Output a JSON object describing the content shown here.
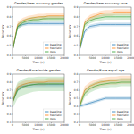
{
  "chart_data": [
    {
      "type": "line",
      "title": "Gender/Item accuracy gender",
      "x_label": "Time (s)",
      "y_label": "Accuracy",
      "x": [
        0,
        2000,
        4000,
        6000,
        8000,
        10000,
        12000,
        14000,
        16000,
        18000,
        20000
      ],
      "xlim": [
        0,
        20000
      ],
      "xticks": [
        0,
        5000,
        10000,
        15000,
        20000
      ],
      "ylim": [
        0.4,
        0.9
      ],
      "yticks": [
        0.4,
        0.5,
        0.6,
        0.7,
        0.8,
        0.9
      ],
      "legend": "lower right",
      "grid": false,
      "series": [
        {
          "name": "baseline",
          "color": "#1f77b4",
          "values": [
            0.45,
            0.7,
            0.72,
            0.73,
            0.73,
            0.73,
            0.73,
            0.73,
            0.73,
            0.73,
            0.73
          ],
          "error": [
            0.02,
            0.02,
            0.02,
            0.02,
            0.02,
            0.02,
            0.02,
            0.02,
            0.02,
            0.02,
            0.02
          ]
        },
        {
          "name": "heuristic",
          "color": "#ff7f0e",
          "values": [
            0.45,
            0.72,
            0.76,
            0.78,
            0.79,
            0.8,
            0.8,
            0.81,
            0.81,
            0.81,
            0.81
          ],
          "error": [
            0.03,
            0.03,
            0.03,
            0.03,
            0.03,
            0.03,
            0.03,
            0.03,
            0.03,
            0.03,
            0.03
          ]
        },
        {
          "name": "ours",
          "color": "#2ca02c",
          "values": [
            0.45,
            0.7,
            0.74,
            0.76,
            0.77,
            0.77,
            0.78,
            0.78,
            0.78,
            0.78,
            0.78
          ],
          "error": [
            0.02,
            0.03,
            0.03,
            0.03,
            0.03,
            0.03,
            0.03,
            0.03,
            0.03,
            0.03,
            0.03
          ]
        }
      ]
    },
    {
      "type": "line",
      "title": "Gender/Item accuracy race",
      "x_label": "Time (s)",
      "y_label": "Accuracy",
      "x": [
        0,
        2000,
        4000,
        6000,
        8000,
        10000,
        12000,
        14000,
        16000,
        18000,
        20000
      ],
      "xlim": [
        0,
        20000
      ],
      "xticks": [
        0,
        5000,
        10000,
        15000,
        20000
      ],
      "ylim": [
        0.4,
        0.9
      ],
      "yticks": [
        0.4,
        0.5,
        0.6,
        0.7,
        0.8,
        0.9
      ],
      "legend": "lower right",
      "grid": false,
      "series": [
        {
          "name": "baseline",
          "color": "#1f77b4",
          "values": [
            0.45,
            0.65,
            0.7,
            0.71,
            0.72,
            0.72,
            0.72,
            0.72,
            0.72,
            0.72,
            0.72
          ],
          "error": [
            0.02,
            0.02,
            0.02,
            0.02,
            0.02,
            0.02,
            0.02,
            0.02,
            0.02,
            0.02,
            0.02
          ]
        },
        {
          "name": "heuristic",
          "color": "#ff7f0e",
          "values": [
            0.45,
            0.74,
            0.79,
            0.81,
            0.83,
            0.84,
            0.84,
            0.85,
            0.85,
            0.85,
            0.85
          ],
          "error": [
            0.03,
            0.03,
            0.03,
            0.03,
            0.03,
            0.03,
            0.03,
            0.03,
            0.03,
            0.03,
            0.03
          ]
        },
        {
          "name": "ours",
          "color": "#2ca02c",
          "values": [
            0.45,
            0.72,
            0.76,
            0.78,
            0.79,
            0.8,
            0.8,
            0.8,
            0.8,
            0.8,
            0.8
          ],
          "error": [
            0.02,
            0.03,
            0.03,
            0.03,
            0.03,
            0.03,
            0.03,
            0.03,
            0.03,
            0.03,
            0.03
          ]
        }
      ]
    },
    {
      "type": "line",
      "title": "Gender/Race inside gender",
      "x_label": "Time (s)",
      "y_label": "Accuracy",
      "x": [
        0,
        2000,
        4000,
        6000,
        8000,
        10000,
        12000,
        14000,
        16000,
        18000,
        20000
      ],
      "xlim": [
        0,
        20000
      ],
      "xticks": [
        0,
        5000,
        10000,
        15000,
        20000
      ],
      "ylim": [
        0.3,
        0.9
      ],
      "yticks": [
        0.3,
        0.4,
        0.5,
        0.6,
        0.7,
        0.8,
        0.9
      ],
      "legend": "lower right",
      "grid": false,
      "series": [
        {
          "name": "baseline",
          "color": "#1f77b4",
          "values": [
            0.55,
            0.72,
            0.75,
            0.76,
            0.77,
            0.77,
            0.77,
            0.77,
            0.77,
            0.77,
            0.77
          ],
          "error": [
            0.03,
            0.03,
            0.03,
            0.03,
            0.03,
            0.03,
            0.03,
            0.03,
            0.03,
            0.03,
            0.03
          ]
        },
        {
          "name": "heuristic",
          "color": "#ff7f0e",
          "values": [
            0.55,
            0.74,
            0.77,
            0.79,
            0.8,
            0.8,
            0.8,
            0.81,
            0.81,
            0.81,
            0.81
          ],
          "error": [
            0.04,
            0.04,
            0.04,
            0.04,
            0.04,
            0.04,
            0.04,
            0.04,
            0.04,
            0.04,
            0.04
          ]
        },
        {
          "name": "ours",
          "color": "#2ca02c",
          "values": [
            0.55,
            0.7,
            0.74,
            0.76,
            0.77,
            0.78,
            0.78,
            0.78,
            0.78,
            0.78,
            0.78
          ],
          "error": [
            0.08,
            0.1,
            0.1,
            0.1,
            0.09,
            0.09,
            0.09,
            0.09,
            0.09,
            0.09,
            0.09
          ]
        }
      ]
    },
    {
      "type": "line",
      "title": "Gender/Race equal age",
      "x_label": "Time (s)",
      "y_label": "Accuracy",
      "x": [
        0,
        2000,
        4000,
        6000,
        8000,
        10000,
        12000,
        14000,
        16000,
        18000,
        20000
      ],
      "xlim": [
        0,
        20000
      ],
      "xticks": [
        0,
        5000,
        10000,
        15000,
        20000
      ],
      "ylim": [
        0.2,
        0.8
      ],
      "yticks": [
        0.2,
        0.3,
        0.4,
        0.5,
        0.6,
        0.7,
        0.8
      ],
      "legend": "lower right",
      "grid": false,
      "series": [
        {
          "name": "baseline",
          "color": "#1f77b4",
          "values": [
            0.4,
            0.42,
            0.44,
            0.46,
            0.48,
            0.5,
            0.5,
            0.5,
            0.5,
            0.5,
            0.5
          ],
          "error": [
            0.02,
            0.02,
            0.02,
            0.02,
            0.02,
            0.02,
            0.02,
            0.02,
            0.02,
            0.02,
            0.02
          ]
        },
        {
          "name": "heuristic",
          "color": "#ff7f0e",
          "values": [
            0.4,
            0.6,
            0.65,
            0.68,
            0.7,
            0.71,
            0.72,
            0.72,
            0.73,
            0.73,
            0.73
          ],
          "error": [
            0.04,
            0.05,
            0.05,
            0.05,
            0.05,
            0.05,
            0.05,
            0.05,
            0.05,
            0.05,
            0.05
          ]
        },
        {
          "name": "ours",
          "color": "#2ca02c",
          "values": [
            0.4,
            0.56,
            0.62,
            0.65,
            0.67,
            0.68,
            0.69,
            0.69,
            0.7,
            0.7,
            0.7
          ],
          "error": [
            0.04,
            0.05,
            0.05,
            0.05,
            0.05,
            0.05,
            0.05,
            0.05,
            0.05,
            0.05,
            0.05
          ]
        }
      ]
    }
  ]
}
